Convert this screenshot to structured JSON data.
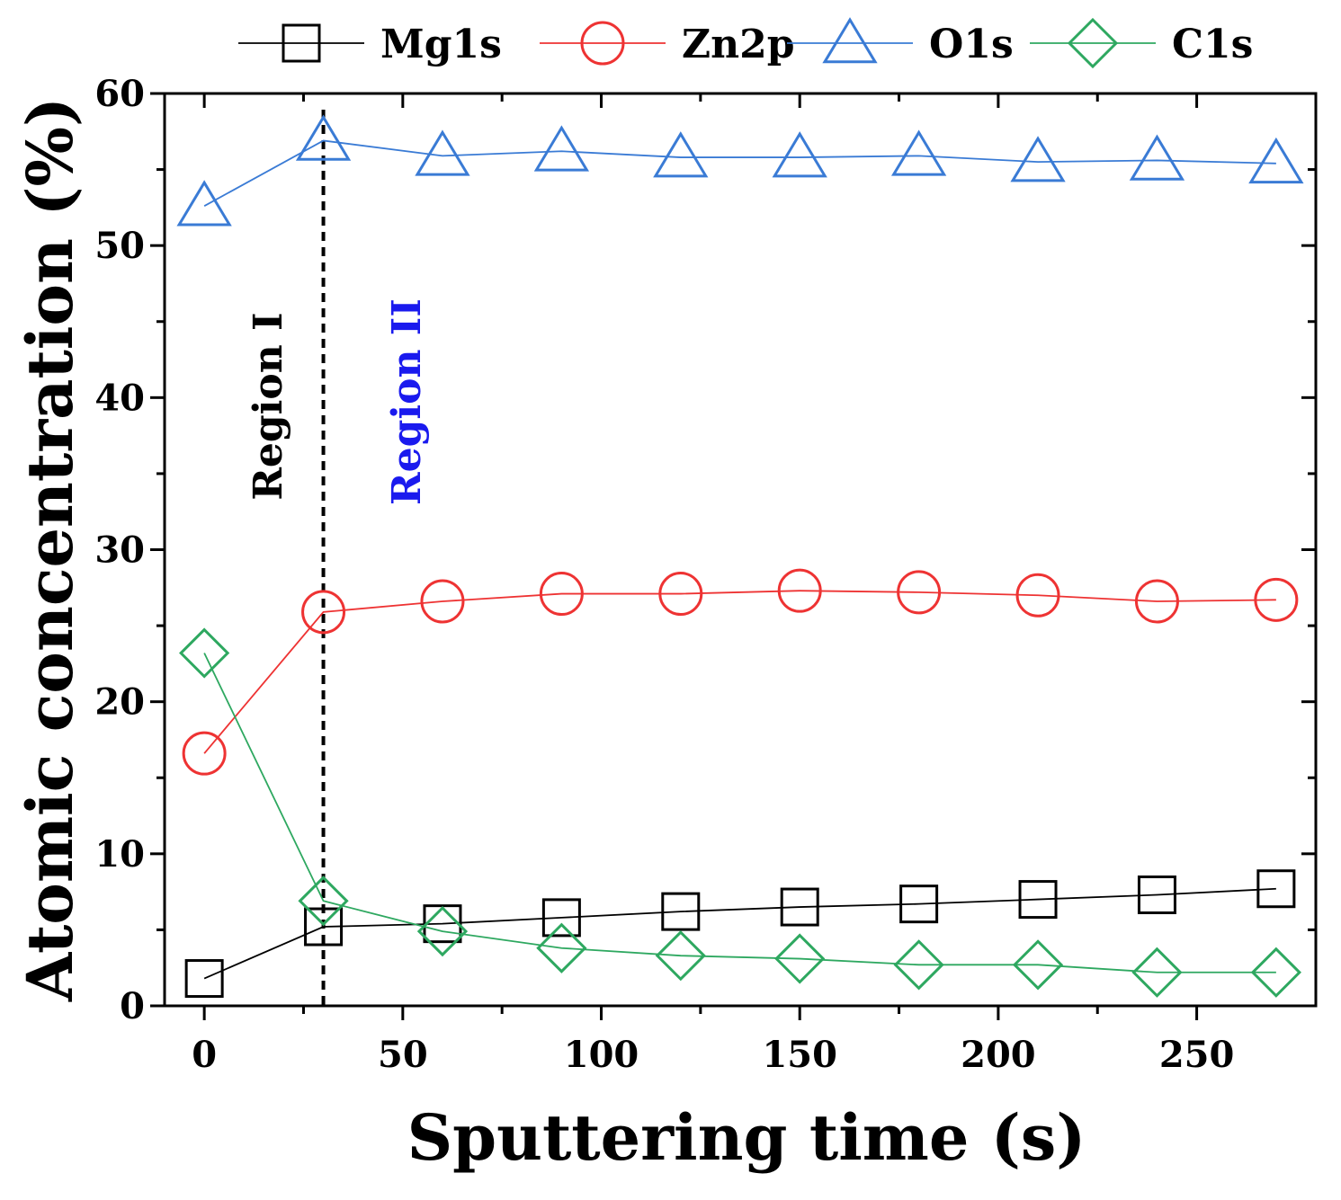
{
  "chart_data": {
    "type": "line",
    "title": "",
    "xlabel": "Sputtering time (s)",
    "ylabel": "Atomic concentration (%)",
    "xlim": [
      -10,
      280
    ],
    "ylim": [
      0,
      60
    ],
    "xticks": [
      0,
      50,
      100,
      150,
      200,
      250
    ],
    "yticks": [
      0,
      10,
      20,
      30,
      40,
      50,
      60
    ],
    "x": [
      0,
      30,
      60,
      90,
      120,
      150,
      180,
      210,
      240,
      270
    ],
    "series": [
      {
        "name": "Mg1s",
        "marker": "square",
        "color": "#000000",
        "values": [
          1.8,
          5.2,
          5.4,
          5.8,
          6.2,
          6.5,
          6.7,
          7.0,
          7.3,
          7.7
        ]
      },
      {
        "name": "Zn2p",
        "marker": "circle",
        "color": "#ee3333",
        "values": [
          16.6,
          25.9,
          26.6,
          27.1,
          27.1,
          27.3,
          27.2,
          27.0,
          26.6,
          26.7
        ]
      },
      {
        "name": "O1s",
        "marker": "triangle",
        "color": "#3a7bd5",
        "values": [
          52.6,
          56.9,
          55.9,
          56.2,
          55.8,
          55.8,
          55.9,
          55.5,
          55.6,
          55.4
        ]
      },
      {
        "name": "C1s",
        "marker": "diamond",
        "color": "#2ea860",
        "values": [
          23.2,
          6.9,
          4.9,
          3.8,
          3.3,
          3.1,
          2.7,
          2.7,
          2.2,
          2.2
        ]
      }
    ],
    "divider": {
      "x": 30,
      "style": "dashed"
    },
    "annotations": [
      {
        "text": "Region I",
        "color": "#000000"
      },
      {
        "text": "Region II",
        "color": "#1a1aee"
      }
    ],
    "legend_position": "top"
  }
}
